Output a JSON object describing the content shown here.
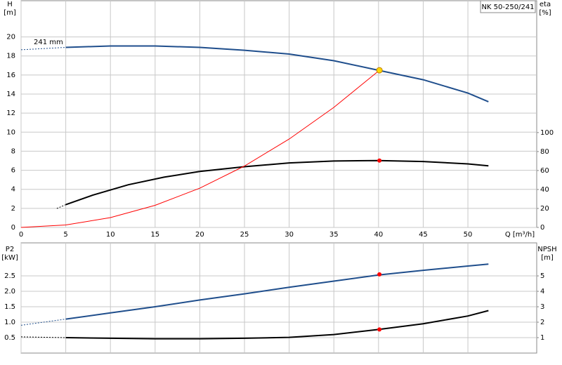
{
  "chart_data": [
    {
      "type": "line",
      "title": "NK 50-250/241",
      "annotation": "241 mm",
      "x_label": "Q [m³/h]",
      "y_label": "H",
      "y_unit": "[m]",
      "y2_label": "eta",
      "y2_unit": "[%]",
      "xlim": [
        0,
        57.7
      ],
      "xticks": [
        0,
        5,
        10,
        15,
        20,
        25,
        30,
        35,
        40,
        45,
        50
      ],
      "ylim": [
        0,
        23.8
      ],
      "yticks": [
        0,
        2,
        4,
        6,
        8,
        10,
        12,
        14,
        16,
        18,
        20
      ],
      "y2lim": [
        0,
        239
      ],
      "y2ticks": [
        0,
        20,
        40,
        60,
        80,
        100
      ],
      "grid": true,
      "series": [
        {
          "color": "#1f4e8c",
          "x": [
            5,
            10,
            15,
            20,
            25,
            30,
            35,
            40,
            45,
            50,
            52.3
          ],
          "values": [
            18.9,
            19.05,
            19.05,
            18.9,
            18.6,
            18.2,
            17.5,
            16.5,
            15.5,
            14.1,
            13.2
          ],
          "extension": {
            "x": [
              0,
              5
            ],
            "values": [
              18.65,
              18.9
            ]
          }
        },
        {
          "color": "#000000",
          "axis": "y2",
          "x": [
            5,
            8,
            12,
            16,
            20,
            25,
            30,
            35,
            40,
            45,
            50,
            52.3
          ],
          "values": [
            24,
            34,
            45,
            53,
            59,
            64,
            68,
            70,
            70.5,
            69.5,
            67,
            65
          ],
          "extension": {
            "x": [
              4,
              5
            ],
            "values": [
              20,
              24
            ]
          }
        },
        {
          "color": "#ff0000",
          "x": [
            0,
            5,
            10,
            15,
            20,
            25,
            30,
            35,
            40.1
          ],
          "values": [
            0,
            0.26,
            1.03,
            2.32,
            4.12,
            6.45,
            9.28,
            12.6,
            16.5
          ]
        }
      ],
      "points": [
        {
          "x": 40.1,
          "value": 16.5,
          "color": "#ffd700"
        },
        {
          "x": 40.1,
          "value": 70.5,
          "axis": "y2",
          "color": "#ff0000"
        }
      ]
    },
    {
      "type": "line",
      "y_label": "P2",
      "y_unit": "[kW]",
      "y2_label": "NPSH",
      "y2_unit": "[m]",
      "xlim": [
        0,
        57.7
      ],
      "xticks": [
        0,
        5,
        10,
        15,
        20,
        25,
        30,
        35,
        40,
        45,
        50
      ],
      "ylim": [
        0,
        3.57
      ],
      "yticks": [
        0.5,
        {
          "value": 1,
          "label": "1.0"
        },
        1.5,
        {
          "value": 2,
          "label": "2.0"
        },
        2.5
      ],
      "y2lim": [
        0,
        7.14
      ],
      "y2ticks": [
        1,
        2,
        3,
        4,
        5
      ],
      "grid": true,
      "series": [
        {
          "color": "#1f4e8c",
          "x": [
            5,
            10,
            15,
            20,
            25,
            30,
            35,
            40,
            45,
            50,
            52.3
          ],
          "values": [
            1.1,
            1.3,
            1.5,
            1.72,
            1.92,
            2.13,
            2.33,
            2.53,
            2.68,
            2.82,
            2.88
          ],
          "extension": {
            "x": [
              0,
              5
            ],
            "values": [
              0.9,
              1.1
            ]
          }
        },
        {
          "color": "#000000",
          "axis": "y2",
          "x": [
            5,
            10,
            15,
            20,
            25,
            30,
            35,
            40,
            45,
            50,
            52.3
          ],
          "values": [
            1.0,
            0.96,
            0.93,
            0.93,
            0.96,
            1.02,
            1.2,
            1.53,
            1.9,
            2.4,
            2.75
          ],
          "extension": {
            "x": [
              0,
              5
            ],
            "values": [
              1.05,
              1.0
            ]
          }
        }
      ],
      "points": [
        {
          "x": 40.1,
          "value": 2.55,
          "color": "#ff0000"
        },
        {
          "x": 40.1,
          "value": 1.53,
          "axis": "y2",
          "color": "#ff0000"
        }
      ]
    }
  ]
}
